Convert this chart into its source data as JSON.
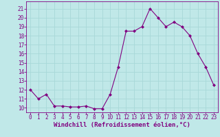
{
  "x": [
    0,
    1,
    2,
    3,
    4,
    5,
    6,
    7,
    8,
    9,
    10,
    11,
    12,
    13,
    14,
    15,
    16,
    17,
    18,
    19,
    20,
    21,
    22,
    23
  ],
  "y": [
    12.0,
    11.0,
    11.5,
    10.2,
    10.2,
    10.1,
    10.1,
    10.2,
    9.9,
    9.9,
    11.5,
    14.5,
    18.5,
    18.5,
    19.0,
    21.0,
    20.0,
    19.0,
    19.5,
    19.0,
    18.0,
    16.0,
    14.5,
    12.5
  ],
  "line_color": "#800080",
  "marker": "D",
  "marker_size": 2.0,
  "xlabel": "Windchill (Refroidissement éolien,°C)",
  "ylabel_ticks": [
    10,
    11,
    12,
    13,
    14,
    15,
    16,
    17,
    18,
    19,
    20,
    21
  ],
  "ylim": [
    9.5,
    21.8
  ],
  "xlim": [
    -0.5,
    23.5
  ],
  "grid_color": "#a8d8d8",
  "bg_color": "#c0e8e8",
  "tick_label_fontsize": 5.5,
  "xlabel_fontsize": 6.5
}
